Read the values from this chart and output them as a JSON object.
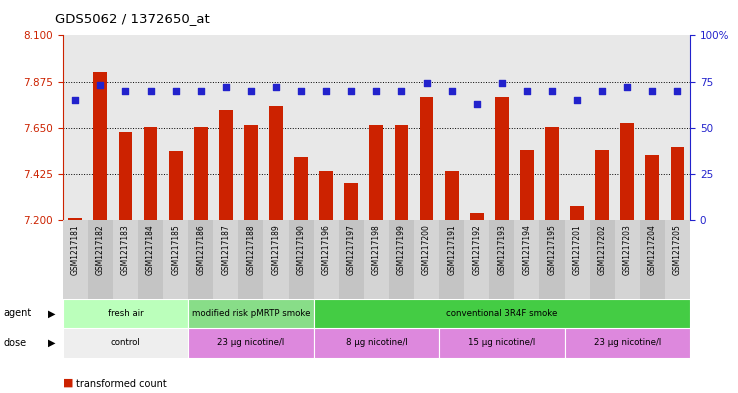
{
  "title": "GDS5062 / 1372650_at",
  "samples": [
    "GSM1217181",
    "GSM1217182",
    "GSM1217183",
    "GSM1217184",
    "GSM1217185",
    "GSM1217186",
    "GSM1217187",
    "GSM1217188",
    "GSM1217189",
    "GSM1217190",
    "GSM1217196",
    "GSM1217197",
    "GSM1217198",
    "GSM1217199",
    "GSM1217200",
    "GSM1217191",
    "GSM1217192",
    "GSM1217193",
    "GSM1217194",
    "GSM1217195",
    "GSM1217201",
    "GSM1217202",
    "GSM1217203",
    "GSM1217204",
    "GSM1217205"
  ],
  "bar_values": [
    7.21,
    7.92,
    7.63,
    7.655,
    7.535,
    7.655,
    7.735,
    7.665,
    7.755,
    7.505,
    7.44,
    7.38,
    7.665,
    7.665,
    7.8,
    7.44,
    7.235,
    7.8,
    7.54,
    7.655,
    7.27,
    7.54,
    7.675,
    7.515,
    7.555
  ],
  "percentile_values": [
    65,
    73,
    70,
    70,
    70,
    70,
    72,
    70,
    72,
    70,
    70,
    70,
    70,
    70,
    74,
    70,
    63,
    74,
    70,
    70,
    65,
    70,
    72,
    70,
    70
  ],
  "ylim_left": [
    7.2,
    8.1
  ],
  "ylim_right": [
    0,
    100
  ],
  "yticks_left": [
    7.2,
    7.425,
    7.65,
    7.875,
    8.1
  ],
  "yticks_right": [
    0,
    25,
    50,
    75,
    100
  ],
  "bar_color": "#cc2200",
  "dot_color": "#2222cc",
  "plot_bg": "#e8e8e8",
  "xtick_bg_odd": "#d0d0d0",
  "xtick_bg_even": "#c0c0c0",
  "agent_groups": [
    {
      "label": "fresh air",
      "start": 0,
      "end": 5,
      "color": "#bbffbb"
    },
    {
      "label": "modified risk pMRTP smoke",
      "start": 5,
      "end": 10,
      "color": "#88dd88"
    },
    {
      "label": "conventional 3R4F smoke",
      "start": 10,
      "end": 25,
      "color": "#44cc44"
    }
  ],
  "dose_groups": [
    {
      "label": "control",
      "start": 0,
      "end": 5,
      "color": "#eeeeee"
    },
    {
      "label": "23 µg nicotine/l",
      "start": 5,
      "end": 10,
      "color": "#dd88dd"
    },
    {
      "label": "8 µg nicotine/l",
      "start": 10,
      "end": 15,
      "color": "#dd88dd"
    },
    {
      "label": "15 µg nicotine/l",
      "start": 15,
      "end": 20,
      "color": "#dd88dd"
    },
    {
      "label": "23 µg nicotine/l",
      "start": 20,
      "end": 25,
      "color": "#dd88dd"
    }
  ]
}
